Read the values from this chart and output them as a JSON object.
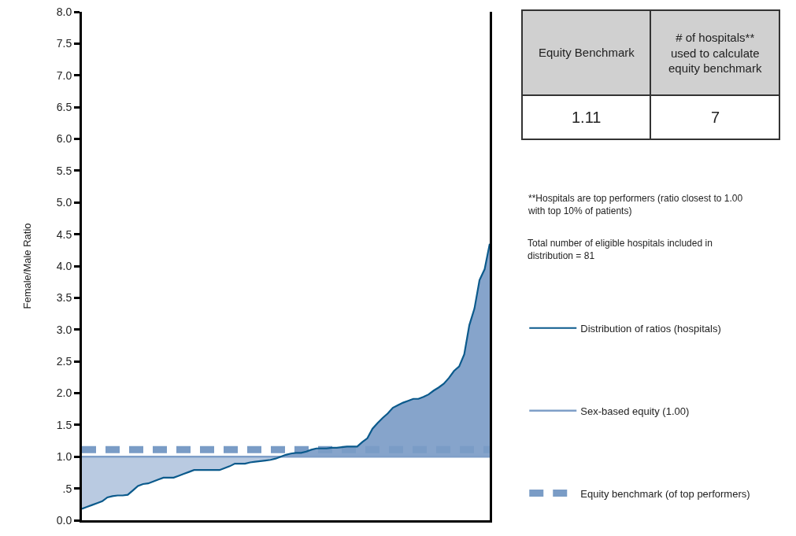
{
  "chart_data": {
    "type": "line",
    "ylabel": "Female/Male Ratio",
    "categories": [
      null,
      null,
      null,
      null,
      null,
      null,
      null,
      null,
      null,
      null,
      null,
      null,
      null,
      null,
      null,
      null,
      null,
      null,
      null,
      null,
      null,
      null,
      null,
      null,
      null,
      null,
      null,
      null,
      null,
      null,
      null,
      null,
      null,
      null,
      null,
      null,
      null,
      null,
      null,
      null,
      null,
      null,
      null,
      null,
      null,
      null,
      null,
      null,
      null,
      null,
      null,
      null,
      null,
      null,
      null,
      null,
      null,
      null,
      null,
      null,
      null,
      null,
      null,
      null,
      null,
      null,
      null,
      null,
      null,
      null,
      null,
      null,
      null,
      null,
      null,
      null,
      null,
      null,
      null,
      null,
      null
    ],
    "series": [
      {
        "name": "Distribution of ratios (hospitals)",
        "color": "#0b5a8c",
        "values": [
          0.18,
          0.21,
          0.24,
          0.27,
          0.3,
          0.36,
          0.38,
          0.39,
          0.39,
          0.4,
          0.47,
          0.54,
          0.57,
          0.58,
          0.61,
          0.64,
          0.67,
          0.67,
          0.67,
          0.7,
          0.73,
          0.76,
          0.79,
          0.79,
          0.79,
          0.79,
          0.79,
          0.79,
          0.82,
          0.85,
          0.89,
          0.89,
          0.89,
          0.91,
          0.92,
          0.93,
          0.94,
          0.95,
          0.97,
          1.0,
          1.03,
          1.05,
          1.06,
          1.06,
          1.08,
          1.11,
          1.13,
          1.13,
          1.13,
          1.14,
          1.14,
          1.15,
          1.16,
          1.16,
          1.16,
          1.23,
          1.29,
          1.44,
          1.53,
          1.61,
          1.68,
          1.77,
          1.81,
          1.85,
          1.88,
          1.91,
          1.91,
          1.94,
          1.98,
          2.04,
          2.09,
          2.15,
          2.24,
          2.35,
          2.42,
          2.61,
          3.07,
          3.33,
          3.78,
          3.95,
          4.35
        ],
        "lower": [
          0.18,
          0.21,
          0.24,
          0.27,
          0.3,
          0.36,
          0.38,
          0.39,
          0.39,
          0.4,
          0.47,
          0.54,
          0.57,
          0.58,
          0.61,
          0.64,
          0.67,
          0.67,
          0.67,
          0.7,
          0.73,
          0.76,
          0.79,
          0.79,
          0.79,
          0.79,
          0.79,
          0.79,
          0.82,
          0.85,
          0.89,
          0.89,
          0.89,
          0.91,
          0.92,
          0.93,
          0.94,
          0.95,
          0.97,
          1.0,
          1.0,
          1.0,
          1.0,
          1.0,
          1.0,
          1.0,
          1.0,
          1.0,
          1.0,
          1.0,
          1.0,
          1.0,
          1.0,
          1.0,
          1.0,
          1.0,
          1.0,
          1.0,
          1.0,
          1.0,
          1.0,
          1.0,
          1.0,
          1.0,
          1.0,
          1.0,
          1.0,
          1.0,
          1.0,
          1.0,
          1.0,
          1.0,
          1.0,
          1.0,
          1.0,
          1.0,
          1.0,
          1.0,
          1.0,
          1.0,
          1.0
        ],
        "upper": [
          1.0,
          1.0,
          1.0,
          1.0,
          1.0,
          1.0,
          1.0,
          1.0,
          1.0,
          1.0,
          1.0,
          1.0,
          1.0,
          1.0,
          1.0,
          1.0,
          1.0,
          1.0,
          1.0,
          1.0,
          1.0,
          1.0,
          1.0,
          1.0,
          1.0,
          1.0,
          1.0,
          1.0,
          1.0,
          1.0,
          1.0,
          1.0,
          1.0,
          1.0,
          1.0,
          1.0,
          1.0,
          1.0,
          1.0,
          1.0,
          1.03,
          1.05,
          1.06,
          1.06,
          1.08,
          1.11,
          1.13,
          1.13,
          1.13,
          1.14,
          1.14,
          1.15,
          1.16,
          1.16,
          1.16,
          1.23,
          1.29,
          1.44,
          1.53,
          1.61,
          1.68,
          1.77,
          1.81,
          1.85,
          1.88,
          1.91,
          1.91,
          1.94,
          1.98,
          2.04,
          2.09,
          2.15,
          2.24,
          2.35,
          2.42,
          2.61,
          3.07,
          3.33,
          3.78,
          3.95,
          4.35
        ]
      }
    ],
    "ref_lines": [
      {
        "axis": "y",
        "value": 1.0,
        "label": "Sex-based equity (1.00)",
        "color": "#7f9fc8",
        "line_style": "solid"
      },
      {
        "axis": "y",
        "value": 1.11,
        "label": "Equity benchmark (of top performers)",
        "color": "#7a9cc6",
        "line_style": "dashed"
      }
    ],
    "ylim": [
      0,
      8
    ],
    "yticks": [
      {
        "value": 0,
        "label": "0.0"
      },
      {
        "value": 0.5,
        "label": ".5"
      },
      {
        "value": 1,
        "label": "1.0"
      },
      {
        "value": 1.5,
        "label": "1.5"
      },
      {
        "value": 2,
        "label": "2.0"
      },
      {
        "value": 2.5,
        "label": "2.5"
      },
      {
        "value": 3,
        "label": "3.0"
      },
      {
        "value": 3.5,
        "label": "3.5"
      },
      {
        "value": 4,
        "label": "4.0"
      },
      {
        "value": 4.5,
        "label": "4.5"
      },
      {
        "value": 5,
        "label": "5.0"
      },
      {
        "value": 5.5,
        "label": "5.5"
      },
      {
        "value": 6,
        "label": "6.0"
      },
      {
        "value": 6.5,
        "label": "6.5"
      },
      {
        "value": 7,
        "label": "7.0"
      },
      {
        "value": 7.5,
        "label": "7.5"
      },
      {
        "value": 8,
        "label": "8.0"
      }
    ],
    "tick_labels": "y",
    "legend": "right",
    "annotations": [
      "Equity Benchmark",
      "# of hospitals**\nused to calculate\nequity benchmark",
      "1.11",
      "7",
      "**Hospitals are top performers (ratio closest to 1.00\nwith top 10% of patients)",
      "Total number of eligible hospitals included in\ndistribution = 81"
    ]
  }
}
